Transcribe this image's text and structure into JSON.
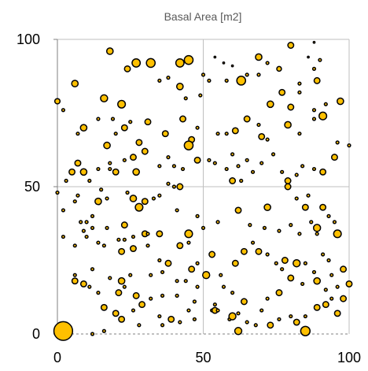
{
  "chart_data": {
    "type": "scatter",
    "title": "Basal Area [m2]",
    "xlim": [
      0,
      100
    ],
    "ylim": [
      0,
      100
    ],
    "x_ticks": [
      0,
      50,
      100
    ],
    "y_ticks": [
      0,
      50,
      100
    ],
    "x_tick_labels": [
      "0",
      "50",
      "100"
    ],
    "y_tick_labels": [
      "0",
      "50",
      "100"
    ],
    "grid": true,
    "legend": "none",
    "colors": {
      "fill": "#FFC000",
      "stroke": "#000000",
      "grid": "#BFBFBF",
      "axis": "#808080",
      "title": "#595959"
    },
    "points": [
      [
        2,
        1,
        3.2
      ],
      [
        85,
        1,
        1.6
      ],
      [
        62,
        1,
        1.2
      ],
      [
        18,
        96,
        1.1
      ],
      [
        27,
        92,
        1.4
      ],
      [
        32,
        92,
        1.5
      ],
      [
        42,
        92,
        1.4
      ],
      [
        45,
        93,
        1.5
      ],
      [
        24,
        90,
        1.0
      ],
      [
        6,
        85,
        1.1
      ],
      [
        57,
        92,
        0.3
      ],
      [
        60,
        91,
        0.3
      ],
      [
        54,
        94,
        0.3
      ],
      [
        76,
        90,
        0.8
      ],
      [
        65,
        88,
        0.5
      ],
      [
        69,
        88,
        0.5
      ],
      [
        63,
        86,
        1.5
      ],
      [
        80,
        98,
        1.0
      ],
      [
        88,
        99,
        0.3
      ],
      [
        86,
        94,
        0.3
      ],
      [
        90,
        93,
        0.5
      ],
      [
        88,
        90,
        0.5
      ],
      [
        69,
        94,
        1.1
      ],
      [
        72,
        92,
        0.5
      ],
      [
        50,
        88,
        0.5
      ],
      [
        52,
        86,
        0.5
      ],
      [
        38,
        87,
        0.5
      ],
      [
        35,
        86,
        0.5
      ],
      [
        58,
        86,
        0.5
      ],
      [
        0,
        79,
        0.9
      ],
      [
        16,
        80,
        1.2
      ],
      [
        22,
        78,
        1.3
      ],
      [
        42,
        84,
        1.1
      ],
      [
        44,
        80,
        0.5
      ],
      [
        49,
        81,
        0.5
      ],
      [
        83,
        82,
        0.5
      ],
      [
        89,
        86,
        1.0
      ],
      [
        83,
        85,
        0.5
      ],
      [
        77,
        82,
        1.0
      ],
      [
        92,
        78,
        0.5
      ],
      [
        97,
        79,
        1.1
      ],
      [
        88,
        76,
        0.5
      ],
      [
        80,
        77,
        1.0
      ],
      [
        73,
        78,
        1.1
      ],
      [
        88,
        73,
        0.5
      ],
      [
        91,
        74,
        1.3
      ],
      [
        2,
        76,
        0.5
      ],
      [
        9,
        70,
        1.1
      ],
      [
        14,
        73,
        0.5
      ],
      [
        19,
        73,
        0.5
      ],
      [
        23,
        70,
        1.0
      ],
      [
        25,
        72,
        0.5
      ],
      [
        31,
        72,
        1.0
      ],
      [
        37,
        68,
        1.0
      ],
      [
        43,
        73,
        1.0
      ],
      [
        48,
        70,
        0.5
      ],
      [
        46,
        66,
        1.0
      ],
      [
        55,
        68,
        0.5
      ],
      [
        58,
        68,
        0.5
      ],
      [
        61,
        69,
        1.0
      ],
      [
        65,
        73,
        1.0
      ],
      [
        69,
        71,
        0.5
      ],
      [
        70,
        67,
        1.0
      ],
      [
        72,
        66,
        0.5
      ],
      [
        79,
        71,
        1.1
      ],
      [
        83,
        68,
        0.5
      ],
      [
        7,
        68,
        0.5
      ],
      [
        17,
        64,
        1.1
      ],
      [
        20,
        68,
        0.5
      ],
      [
        28,
        65,
        1.0
      ],
      [
        38,
        60,
        0.5
      ],
      [
        45,
        64,
        1.5
      ],
      [
        23,
        59,
        0.5
      ],
      [
        26,
        60,
        1.0
      ],
      [
        30,
        62,
        1.0
      ],
      [
        18,
        58,
        0.5
      ],
      [
        14,
        56,
        0.5
      ],
      [
        7,
        58,
        1.0
      ],
      [
        9,
        55,
        1.1
      ],
      [
        5,
        55,
        1.0
      ],
      [
        11,
        52,
        0.5
      ],
      [
        3,
        52,
        0.5
      ],
      [
        0,
        48,
        0.5
      ],
      [
        18,
        56,
        0.5
      ],
      [
        20,
        55,
        1.0
      ],
      [
        27,
        55,
        1.1
      ],
      [
        35,
        57,
        0.5
      ],
      [
        40,
        57,
        0.5
      ],
      [
        43,
        56,
        0.5
      ],
      [
        48,
        59,
        1.0
      ],
      [
        52,
        59,
        0.5
      ],
      [
        54,
        58,
        0.5
      ],
      [
        58,
        56,
        0.5
      ],
      [
        60,
        61,
        0.5
      ],
      [
        62,
        57,
        0.5
      ],
      [
        60,
        52,
        1.0
      ],
      [
        63,
        52,
        0.5
      ],
      [
        65,
        59,
        0.5
      ],
      [
        67,
        55,
        0.5
      ],
      [
        70,
        58,
        0.5
      ],
      [
        74,
        61,
        0.5
      ],
      [
        77,
        55,
        0.5
      ],
      [
        79,
        52,
        1.0
      ],
      [
        82,
        54,
        0.5
      ],
      [
        84,
        57,
        0.5
      ],
      [
        88,
        56,
        0.5
      ],
      [
        91,
        55,
        1.0
      ],
      [
        95,
        60,
        1.0
      ],
      [
        96,
        65,
        0.5
      ],
      [
        100,
        64,
        0.5
      ],
      [
        38,
        51,
        0.5
      ],
      [
        40,
        50,
        0.5
      ],
      [
        42,
        50,
        1.0
      ],
      [
        35,
        47,
        0.5
      ],
      [
        33,
        46,
        0.5
      ],
      [
        30,
        45,
        1.0
      ],
      [
        26,
        46,
        1.1
      ],
      [
        28,
        43,
        1.3
      ],
      [
        24,
        48,
        0.5
      ],
      [
        15,
        49,
        0.5
      ],
      [
        17,
        46,
        0.5
      ],
      [
        14,
        45,
        1.1
      ],
      [
        7,
        47,
        0.5
      ],
      [
        6,
        45,
        0.5
      ],
      [
        12,
        40,
        0.5
      ],
      [
        10,
        38,
        0.5
      ],
      [
        2,
        42,
        0.5
      ],
      [
        8,
        38,
        0.5
      ],
      [
        17,
        36,
        0.5
      ],
      [
        23,
        37,
        1.0
      ],
      [
        26,
        33,
        0.5
      ],
      [
        30,
        34,
        1.0
      ],
      [
        31,
        34,
        0.5
      ],
      [
        35,
        34,
        1.0
      ],
      [
        41,
        42,
        0.5
      ],
      [
        50,
        36,
        0.5
      ],
      [
        45,
        34,
        1.3
      ],
      [
        48,
        40,
        0.5
      ],
      [
        55,
        38,
        0.5
      ],
      [
        62,
        42,
        1.0
      ],
      [
        66,
        37,
        0.5
      ],
      [
        72,
        43,
        1.1
      ],
      [
        79,
        50,
        1.0
      ],
      [
        82,
        46,
        0.5
      ],
      [
        86,
        47,
        0.5
      ],
      [
        91,
        43,
        1.0
      ],
      [
        93,
        40,
        0.5
      ],
      [
        95,
        38,
        0.5
      ],
      [
        85,
        43,
        1.0
      ],
      [
        89,
        34,
        0.5
      ],
      [
        87,
        38,
        0.5
      ],
      [
        89,
        36,
        1.2
      ],
      [
        96,
        34,
        1.3
      ],
      [
        83,
        34,
        0.5
      ],
      [
        80,
        37,
        0.5
      ],
      [
        76,
        35,
        0.5
      ],
      [
        71,
        36,
        0.5
      ],
      [
        67,
        31,
        0.5
      ],
      [
        2,
        33,
        0.5
      ],
      [
        6,
        30,
        0.5
      ],
      [
        9,
        35,
        0.5
      ],
      [
        10,
        33,
        0.5
      ],
      [
        12,
        36,
        0.5
      ],
      [
        14,
        31,
        0.5
      ],
      [
        16,
        30,
        0.5
      ],
      [
        21,
        32,
        0.5
      ],
      [
        23,
        32,
        0.5
      ],
      [
        22,
        28,
        1.0
      ],
      [
        26,
        29,
        1.0
      ],
      [
        31,
        30,
        0.5
      ],
      [
        35,
        25,
        0.5
      ],
      [
        38,
        24,
        1.0
      ],
      [
        42,
        30,
        1.0
      ],
      [
        45,
        31,
        0.5
      ],
      [
        48,
        24,
        0.5
      ],
      [
        53,
        27,
        1.0
      ],
      [
        56,
        20,
        0.5
      ],
      [
        61,
        24,
        1.0
      ],
      [
        64,
        28,
        1.0
      ],
      [
        69,
        28,
        1.0
      ],
      [
        72,
        27,
        0.5
      ],
      [
        75,
        24,
        0.5
      ],
      [
        77,
        22,
        0.5
      ],
      [
        78,
        25,
        1.0
      ],
      [
        82,
        24,
        1.2
      ],
      [
        85,
        24,
        0.5
      ],
      [
        88,
        21,
        0.5
      ],
      [
        91,
        27,
        0.5
      ],
      [
        93,
        25,
        0.5
      ],
      [
        94,
        20,
        0.5
      ],
      [
        98,
        22,
        1.0
      ],
      [
        100,
        17,
        1.0
      ],
      [
        96,
        16,
        0.5
      ],
      [
        92,
        15,
        0.5
      ],
      [
        89,
        18,
        1.1
      ],
      [
        84,
        17,
        0.5
      ],
      [
        80,
        19,
        1.0
      ],
      [
        76,
        14,
        1.0
      ],
      [
        72,
        12,
        0.5
      ],
      [
        70,
        8,
        0.5
      ],
      [
        64,
        11,
        1.0
      ],
      [
        60,
        14,
        0.5
      ],
      [
        57,
        16,
        0.5
      ],
      [
        51,
        20,
        1.2
      ],
      [
        48,
        16,
        0.5
      ],
      [
        47,
        11,
        0.5
      ],
      [
        41,
        13,
        0.5
      ],
      [
        36,
        13,
        0.5
      ],
      [
        32,
        12,
        0.5
      ],
      [
        29,
        10,
        1.0
      ],
      [
        27,
        13,
        1.0
      ],
      [
        23,
        16,
        0.5
      ],
      [
        21,
        14,
        1.0
      ],
      [
        16,
        9,
        1.0
      ],
      [
        14,
        14,
        0.5
      ],
      [
        11,
        16,
        0.5
      ],
      [
        9,
        17,
        1.0
      ],
      [
        6,
        18,
        1.0
      ],
      [
        6,
        20,
        0.5
      ],
      [
        12,
        22,
        0.5
      ],
      [
        18,
        19,
        0.5
      ],
      [
        22,
        18,
        1.1
      ],
      [
        25,
        20,
        0.5
      ],
      [
        32,
        20,
        0.5
      ],
      [
        36,
        21,
        0.5
      ],
      [
        41,
        18,
        0.5
      ],
      [
        44,
        18,
        0.5
      ],
      [
        46,
        22,
        1.0
      ],
      [
        53,
        8,
        0.5
      ],
      [
        54,
        10,
        0.5
      ],
      [
        54,
        8,
        1.0
      ],
      [
        55,
        8,
        0.5
      ],
      [
        59,
        5,
        0.5
      ],
      [
        60,
        6,
        0.5
      ],
      [
        60,
        6,
        1.2
      ],
      [
        62,
        7,
        0.5
      ],
      [
        65,
        4,
        0.5
      ],
      [
        68,
        3,
        0.5
      ],
      [
        73,
        3,
        1.0
      ],
      [
        76,
        5,
        0.5
      ],
      [
        80,
        6,
        0.5
      ],
      [
        82,
        4,
        1.0
      ],
      [
        85,
        6,
        0.5
      ],
      [
        89,
        9,
        1.0
      ],
      [
        92,
        10,
        1.0
      ],
      [
        94,
        12,
        0.5
      ],
      [
        96,
        7,
        1.0
      ],
      [
        98,
        12,
        1.0
      ],
      [
        36,
        3,
        0.5
      ],
      [
        39,
        5,
        1.0
      ],
      [
        35,
        6,
        0.5
      ],
      [
        28,
        3,
        0.5
      ],
      [
        22,
        5,
        1.0
      ],
      [
        20,
        7,
        1.0
      ],
      [
        12,
        0,
        0.5
      ],
      [
        16,
        1,
        0.5
      ],
      [
        26,
        8,
        0.5
      ],
      [
        45,
        8,
        0.5
      ],
      [
        47,
        5,
        0.5
      ],
      [
        42,
        4,
        0.5
      ]
    ]
  }
}
